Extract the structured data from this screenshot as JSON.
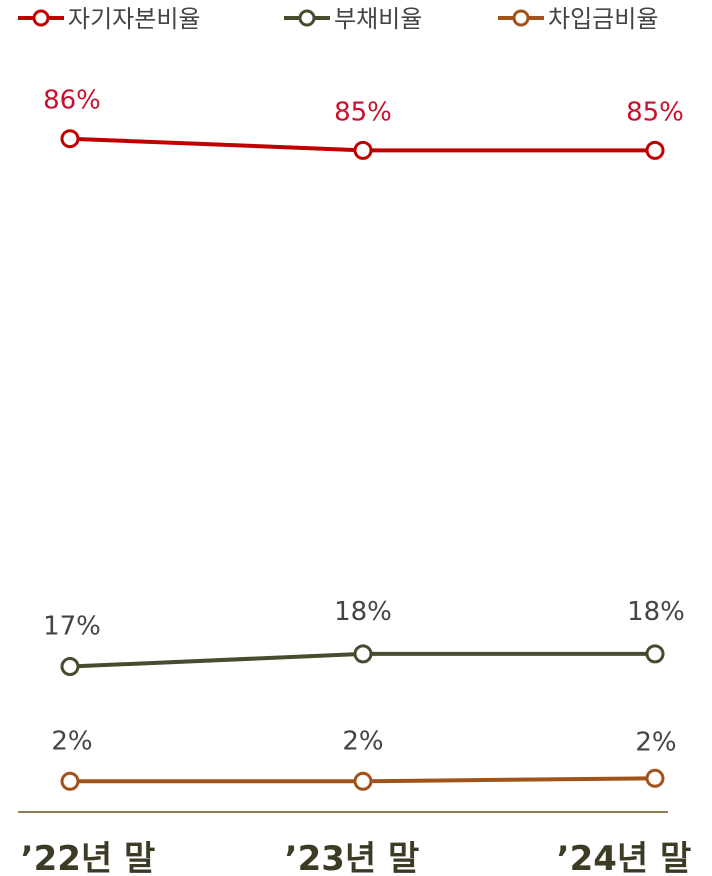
{
  "chart_data": {
    "type": "line",
    "categories": [
      "’22년 말",
      "’23년 말",
      "’24년 말"
    ],
    "series": [
      {
        "name": "자기자본비율",
        "values": [
          86,
          85,
          85
        ],
        "labels": [
          "86%",
          "85%",
          "85%"
        ],
        "color": "#c00000",
        "label_color": "#c8102e"
      },
      {
        "name": "부채비율",
        "values": [
          17,
          18,
          18
        ],
        "labels": [
          "17%",
          "18%",
          "18%"
        ],
        "color": "#4a4a2e",
        "label_color": "#444444"
      },
      {
        "name": "차입금비율",
        "values": [
          2,
          2,
          2
        ],
        "labels": [
          "2%",
          "2%",
          "2%"
        ],
        "color": "#a0521a",
        "label_color": "#444444"
      }
    ],
    "ylim": [
      0,
      100
    ],
    "grid": false,
    "legend_position": "top",
    "axis_color": "#8b8255"
  }
}
